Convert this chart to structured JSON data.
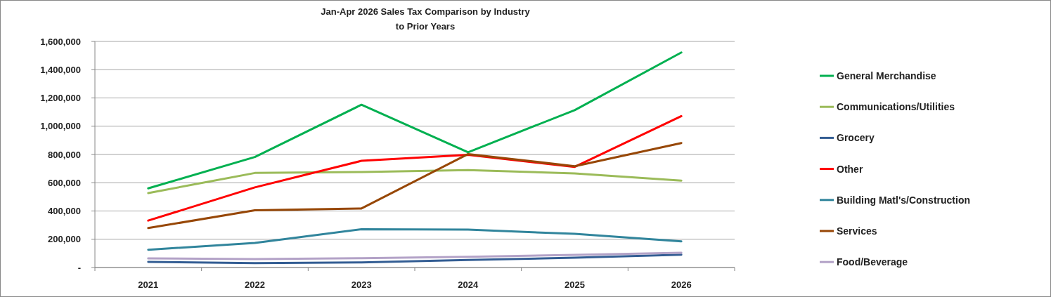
{
  "chart_data": {
    "type": "line",
    "title": "Jan-Apr 2026 Sales Tax Comparison by Industry\nto Prior Years",
    "categories": [
      "2021",
      "2022",
      "2023",
      "2024",
      "2025",
      "2026"
    ],
    "series": [
      {
        "name": "General Merchandise",
        "color": "#00b050",
        "values": [
          560000,
          782000,
          1152000,
          816000,
          1114000,
          1522000
        ]
      },
      {
        "name": "Communications/Utilities",
        "color": "#9bbb59",
        "values": [
          527000,
          669000,
          676000,
          689000,
          666000,
          615000
        ]
      },
      {
        "name": "Grocery",
        "color": "#335d93",
        "values": [
          40000,
          31000,
          36000,
          53000,
          69000,
          91000
        ]
      },
      {
        "name": "Other",
        "color": "#ff0000",
        "values": [
          332000,
          567000,
          755000,
          797000,
          712000,
          1071000
        ]
      },
      {
        "name": "Building Matl's/Construction",
        "color": "#31859c",
        "values": [
          126000,
          174000,
          271000,
          268000,
          238000,
          185000
        ]
      },
      {
        "name": "Services",
        "color": "#974706",
        "values": [
          279000,
          405000,
          418000,
          803000,
          717000,
          881000
        ]
      },
      {
        "name": "Food/Beverage",
        "color": "#b3a2c7",
        "values": [
          64000,
          60000,
          66000,
          76000,
          89000,
          104000
        ]
      }
    ],
    "ylim": [
      0,
      1600000
    ],
    "yticks": [
      {
        "value": 0,
        "label": "-"
      },
      {
        "value": 200000,
        "label": "200,000"
      },
      {
        "value": 400000,
        "label": "400,000"
      },
      {
        "value": 600000,
        "label": "600,000"
      },
      {
        "value": 800000,
        "label": "800,000"
      },
      {
        "value": 1000000,
        "label": "1,000,000"
      },
      {
        "value": 1200000,
        "label": "1,200,000"
      },
      {
        "value": 1400000,
        "label": "1,400,000"
      },
      {
        "value": 1600000,
        "label": "1,600,000"
      }
    ],
    "grid": "y",
    "legend": "right",
    "marker": "none",
    "line_style": "solid"
  }
}
